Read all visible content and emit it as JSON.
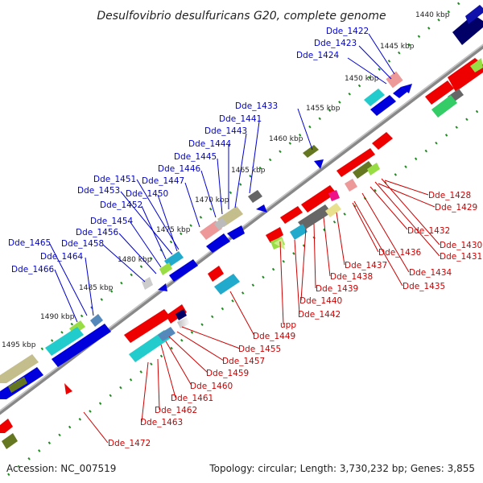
{
  "title": "Desulfovibrio desulfuricans G20, complete genome",
  "accession": "Accession: NC_007519",
  "summary": "Topology: circular; Length: 3,730,232 bp; Genes: 3,855",
  "scale_ticks": [
    "1440 kbp",
    "1445 kbp",
    "1450 kbp",
    "1455 kbp",
    "1460 kbp",
    "1465 kbp",
    "1470 kbp",
    "1475 kbp",
    "1480 kbp",
    "1485 kbp",
    "1490 kbp",
    "1495 kbp"
  ],
  "colors": {
    "forward_label": "#0000cc",
    "reverse_label": "#cc0000",
    "backbone": "#777777",
    "tick": "#1e8c1e"
  },
  "forward_labels": [
    "Dde_1422",
    "Dde_1423",
    "Dde_1424",
    "Dde_1433",
    "Dde_1441",
    "Dde_1443",
    "Dde_1444",
    "Dde_1445",
    "Dde_1446",
    "Dde_1447",
    "Dde_1451",
    "Dde_1453",
    "Dde_1450",
    "Dde_1452",
    "Dde_1454",
    "Dde_1456",
    "Dde_1465",
    "Dde_1458",
    "Dde_1464",
    "Dde_1466"
  ],
  "reverse_labels": [
    "Dde_1428",
    "Dde_1429",
    "Dde_1432",
    "Dde_1430",
    "Dde_1431",
    "Dde_1436",
    "Dde_1434",
    "Dde_1437",
    "Dde_1435",
    "Dde_1438",
    "Dde_1439",
    "Dde_1440",
    "Dde_1442",
    "upp",
    "Dde_1449",
    "Dde_1455",
    "Dde_1457",
    "Dde_1459",
    "Dde_1460",
    "Dde_1461",
    "Dde_1462",
    "Dde_1463",
    "Dde_1472"
  ]
}
